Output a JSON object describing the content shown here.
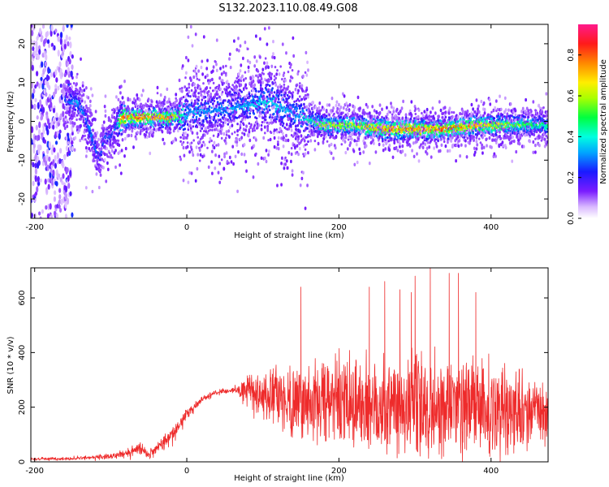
{
  "title": "S132.2023.110.08.49.G08",
  "colors": {
    "snr_line": "#ee2b2b",
    "axis": "#000000",
    "background": "#ffffff"
  },
  "chart_data": [
    {
      "type": "heatmap",
      "xlabel": "Height of straight line (km)",
      "ylabel": "Frequency (Hz)",
      "xlim": [
        -205,
        475
      ],
      "ylim": [
        -25,
        25
      ],
      "x_ticks": [
        -200,
        0,
        200,
        400
      ],
      "y_ticks": [
        -20,
        -10,
        0,
        10,
        20
      ],
      "colorbar": {
        "label": "Normalized spectral amplitude",
        "range": [
          0,
          0.95
        ],
        "ticks": [
          0.0,
          0.2,
          0.4,
          0.6,
          0.8
        ],
        "colormap": "rainbow (white-violet-blue-cyan-green-yellow-orange-red-magenta)"
      },
      "ridge": {
        "description": "dominant frequency track vs height",
        "x": [
          -160,
          -145,
          -135,
          -125,
          -115,
          -108,
          -100,
          -92,
          -85,
          -60,
          -20,
          0,
          40,
          80,
          110,
          130,
          150,
          180,
          220,
          260,
          300,
          340,
          380,
          420,
          475
        ],
        "y": [
          5,
          5,
          2,
          -4,
          -10,
          -4,
          -4,
          -1,
          1,
          1,
          1,
          2,
          3,
          4,
          5,
          3,
          1,
          -1,
          -1,
          -2,
          -2,
          -2,
          -1,
          -1,
          -1
        ],
        "peak_amplitude": [
          0.3,
          0.4,
          0.35,
          0.35,
          0.3,
          0.3,
          0.3,
          0.35,
          0.9,
          0.9,
          0.85,
          0.4,
          0.35,
          0.4,
          0.45,
          0.4,
          0.4,
          0.7,
          0.7,
          0.9,
          0.9,
          0.9,
          0.85,
          0.7,
          0.5
        ]
      },
      "noise_region": {
        "x": [
          -205,
          -150
        ],
        "y": [
          -25,
          25
        ]
      }
    },
    {
      "type": "line",
      "xlabel": "Height of straight line (km)",
      "ylabel": "SNR (10 * v/v)",
      "xlim": [
        -205,
        475
      ],
      "ylim": [
        0,
        710
      ],
      "x_ticks": [
        -200,
        0,
        200,
        400
      ],
      "y_ticks": [
        0,
        200,
        400,
        600
      ],
      "series": [
        {
          "envelope_x": [
            -205,
            -150,
            -100,
            -80,
            -60,
            -50,
            -30,
            -10,
            0,
            20,
            40,
            60,
            80,
            100,
            150,
            200,
            250,
            300,
            320,
            350,
            400,
            450,
            475
          ],
          "baseline_y": [
            10,
            12,
            20,
            30,
            50,
            25,
            70,
            130,
            175,
            230,
            255,
            262,
            260,
            240,
            220,
            215,
            210,
            205,
            210,
            200,
            190,
            185,
            180
          ],
          "spread_y": [
            5,
            6,
            10,
            15,
            25,
            20,
            30,
            25,
            20,
            12,
            10,
            10,
            60,
            110,
            170,
            210,
            230,
            240,
            250,
            240,
            220,
            160,
            120
          ],
          "peaks_x": [
            150,
            240,
            260,
            280,
            295,
            300,
            320,
            345,
            357,
            380
          ],
          "peaks_y": [
            640,
            640,
            660,
            630,
            620,
            680,
            710,
            690,
            690,
            620
          ]
        }
      ]
    }
  ]
}
